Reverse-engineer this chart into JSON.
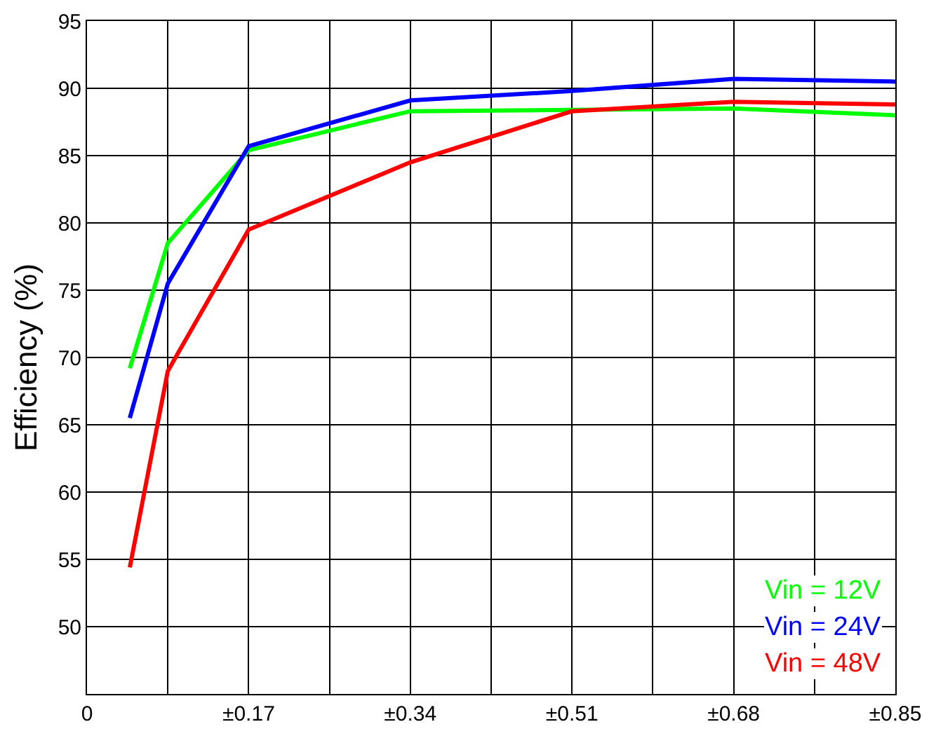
{
  "chart_data": {
    "type": "line",
    "ylabel": "Efficiency (%)",
    "x": [
      0.045,
      0.085,
      0.17,
      0.34,
      0.51,
      0.68,
      0.85
    ],
    "series": [
      {
        "name": "Vin = 12V",
        "color": "#00ff00",
        "values": [
          69.2,
          78.5,
          85.4,
          88.3,
          88.4,
          88.5,
          88.0
        ]
      },
      {
        "name": "Vin = 24V",
        "color": "#0000ff",
        "values": [
          65.5,
          75.5,
          85.7,
          89.1,
          89.8,
          90.7,
          90.5
        ]
      },
      {
        "name": "Vin = 48V",
        "color": "#ff0000",
        "values": [
          54.4,
          69.0,
          79.5,
          84.5,
          88.3,
          89.0,
          88.8
        ]
      }
    ],
    "xlim": [
      0,
      0.85
    ],
    "xticks": [
      0,
      {
        "value": 0.085,
        "label": null
      },
      {
        "value": 0.17,
        "label": "±0.17"
      },
      {
        "value": 0.255,
        "label": null
      },
      {
        "value": 0.34,
        "label": "±0.34"
      },
      {
        "value": 0.425,
        "label": null
      },
      {
        "value": 0.51,
        "label": "±0.51"
      },
      {
        "value": 0.595,
        "label": null
      },
      {
        "value": 0.68,
        "label": "±0.68"
      },
      {
        "value": 0.765,
        "label": null
      },
      {
        "value": 0.85,
        "label": "±0.85"
      }
    ],
    "ylim": [
      45,
      95
    ],
    "yticks": [
      50,
      55,
      60,
      65,
      70,
      75,
      80,
      85,
      90,
      95
    ],
    "grid": true,
    "legend": "bottom right",
    "line_style": "solid",
    "marker": "none"
  }
}
